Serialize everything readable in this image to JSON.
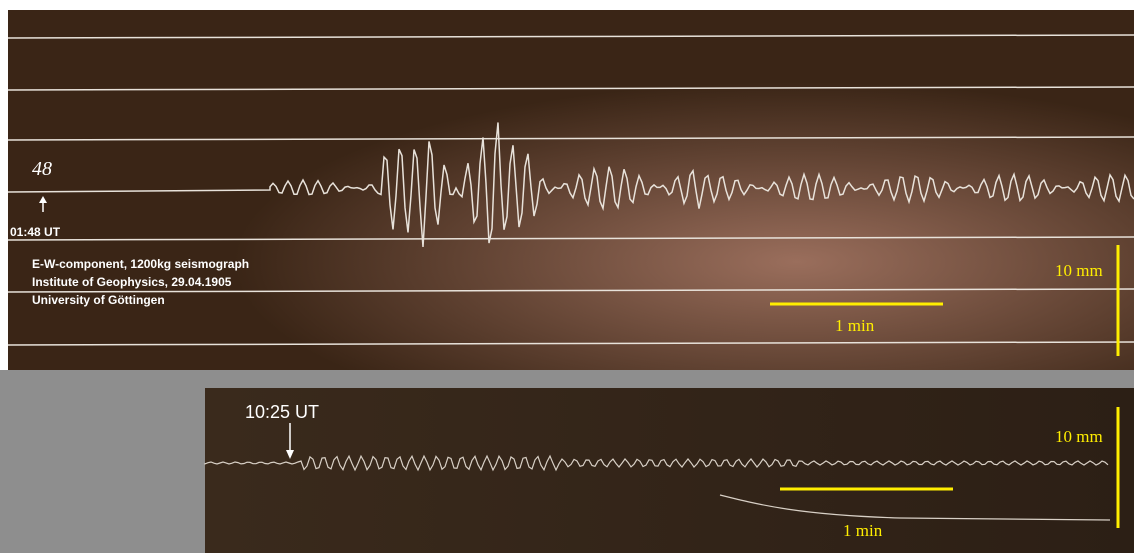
{
  "top_panel": {
    "hand_mark": "48",
    "time_label": "01:48 UT",
    "caption": [
      "E-W-component, 1200kg seismograph",
      "Institute of Geophysics, 29.04.1905",
      "University of Göttingen"
    ],
    "scale_amplitude": "10 mm",
    "scale_time": "1 min"
  },
  "bottom_panel": {
    "time_label": "10:25 UT",
    "scale_amplitude": "10 mm",
    "scale_time": "1 min"
  }
}
